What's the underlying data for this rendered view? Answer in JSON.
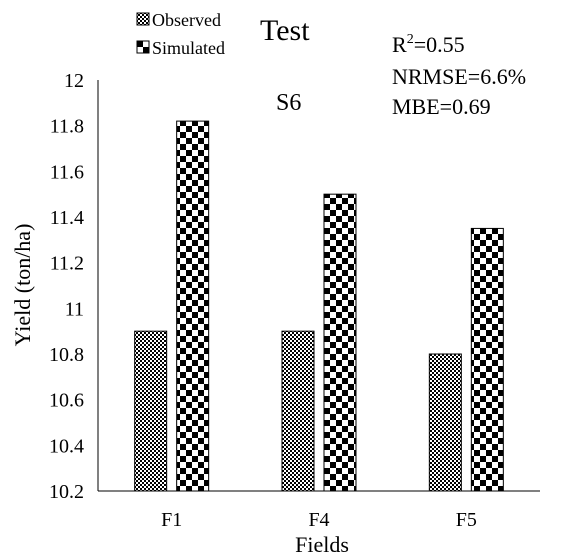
{
  "chart_data": {
    "type": "bar",
    "title": "Test",
    "subtitle": "S6",
    "xlabel": "Fields",
    "ylabel": "Yield (ton/ha)",
    "categories": [
      "F1",
      "F4",
      "F5"
    ],
    "series": [
      {
        "name": "Observed",
        "values": [
          10.9,
          10.9,
          10.8
        ]
      },
      {
        "name": "Simulated",
        "values": [
          11.82,
          11.5,
          11.35
        ]
      }
    ],
    "ylim": [
      10.2,
      12
    ],
    "yticks": [
      "10.2",
      "10.4",
      "10.6",
      "10.8",
      "11",
      "11.2",
      "11.4",
      "11.6",
      "11.8",
      "12"
    ],
    "grid": false,
    "legend_position": "top-left",
    "stats": {
      "r2_prefix": "R",
      "r2_sup": "2",
      "r2_value": "=0.55",
      "nrmse": "NRMSE=6.6%",
      "mbe": "MBE=0.69"
    },
    "colors": {
      "axis": "#000000",
      "pattern": "#000000",
      "background": "#ffffff"
    }
  }
}
